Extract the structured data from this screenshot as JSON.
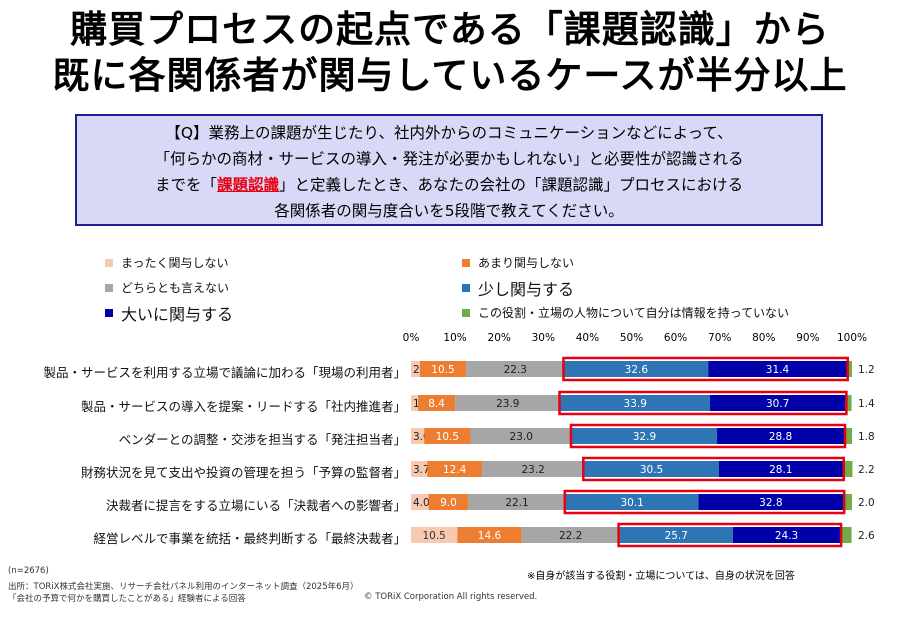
{
  "header": {
    "title_line1": "購買プロセスの起点である「課題認識」から",
    "title_line2": "既に各関係者が関与しているケースが半分以上"
  },
  "question": {
    "line1": "【Q】業務上の課題が生じたり、社内外からのコミュニケーションなどによって、",
    "line2": "「何らかの商材・サービスの導入・発注が必要かもしれない」と必要性が認識される",
    "line3_pre": "までを「",
    "line3_highlight": "課題認識",
    "line3_post": "」と定義したとき、あなたの会社の「課題認識」プロセスにおける",
    "line4": "各関係者の関与度合いを5段階で教えてください。"
  },
  "colors": {
    "none": "#f7c9b1",
    "little": "#ed7d31",
    "neutral": "#a6a6a6",
    "some": "#2e75b6",
    "much": "#0000a8",
    "unknown": "#70ad47",
    "highlight_border": "#e60012"
  },
  "chart_data": {
    "type": "bar",
    "orientation": "horizontal",
    "stacked": true,
    "percent": true,
    "xlim": [
      0,
      100
    ],
    "x_ticks": [
      "0%",
      "10%",
      "20%",
      "30%",
      "40%",
      "50%",
      "60%",
      "70%",
      "80%",
      "90%",
      "100%"
    ],
    "categories": [
      "製品・サービスを利用する立場で議論に加わる「現場の利用者」",
      "製品・サービスの導入を提案・リードする「社内推進者」",
      "ベンダーとの調整・交渉を担当する「発注担当者」",
      "財務状況を見て支出や投資の管理を担う「予算の監督者」",
      "決裁者に提言をする立場にいる「決裁者への影響者」",
      "経営レベルで事業を統括・最終判断する「最終決裁者」"
    ],
    "series": [
      {
        "key": "none",
        "name": "まったく関与しない",
        "values": [
          2.0,
          1.6,
          3.0,
          3.7,
          4.0,
          10.5
        ],
        "labels": [
          "2.0",
          "1.6",
          "3.0",
          "3.7",
          "4.0",
          "10.5"
        ]
      },
      {
        "key": "little",
        "name": "あまり関与しない",
        "values": [
          10.5,
          8.4,
          10.5,
          12.4,
          9.0,
          14.6
        ],
        "labels": [
          "10.5",
          "8.4",
          "10.5",
          "12.4",
          "9.0",
          "14.6"
        ]
      },
      {
        "key": "neutral",
        "name": "どちらとも言えない",
        "values": [
          22.3,
          23.9,
          23.0,
          23.2,
          22.1,
          22.2
        ],
        "labels": [
          "22.3",
          "23.9",
          "23.0",
          "23.2",
          "22.1",
          "22.2"
        ]
      },
      {
        "key": "some",
        "name": "少し関与する",
        "values": [
          32.6,
          33.9,
          32.9,
          30.5,
          30.1,
          25.7
        ],
        "labels": [
          "32.6",
          "33.9",
          "32.9",
          "30.5",
          "30.1",
          "25.7"
        ]
      },
      {
        "key": "much",
        "name": "大いに関与する",
        "values": [
          31.4,
          30.7,
          28.8,
          28.1,
          32.8,
          24.3
        ],
        "labels": [
          "31.4",
          "30.7",
          "28.8",
          "28.1",
          "32.8",
          "24.3"
        ]
      },
      {
        "key": "unknown",
        "name": "この役割・立場の人物について自分は情報を持っていない",
        "values": [
          1.2,
          1.4,
          1.8,
          2.2,
          2.0,
          2.6
        ],
        "labels": [
          "1.2",
          "1.4",
          "1.8",
          "2.2",
          "2.0",
          "2.6"
        ]
      }
    ],
    "highlight": "少し関与する + 大いに関与する"
  },
  "footer": {
    "n": "(n=2676)",
    "source": "出所：TORiX株式会社実施、リサーチ会社パネル利用のインターネット調査（2025年6月）",
    "respondents": "「会社の予算で何かを購買したことがある」経験者による回答",
    "copyright": "© TORiX Corporation All rights reserved.",
    "note": "※自身が該当する役割・立場については、自身の状況を回答"
  }
}
